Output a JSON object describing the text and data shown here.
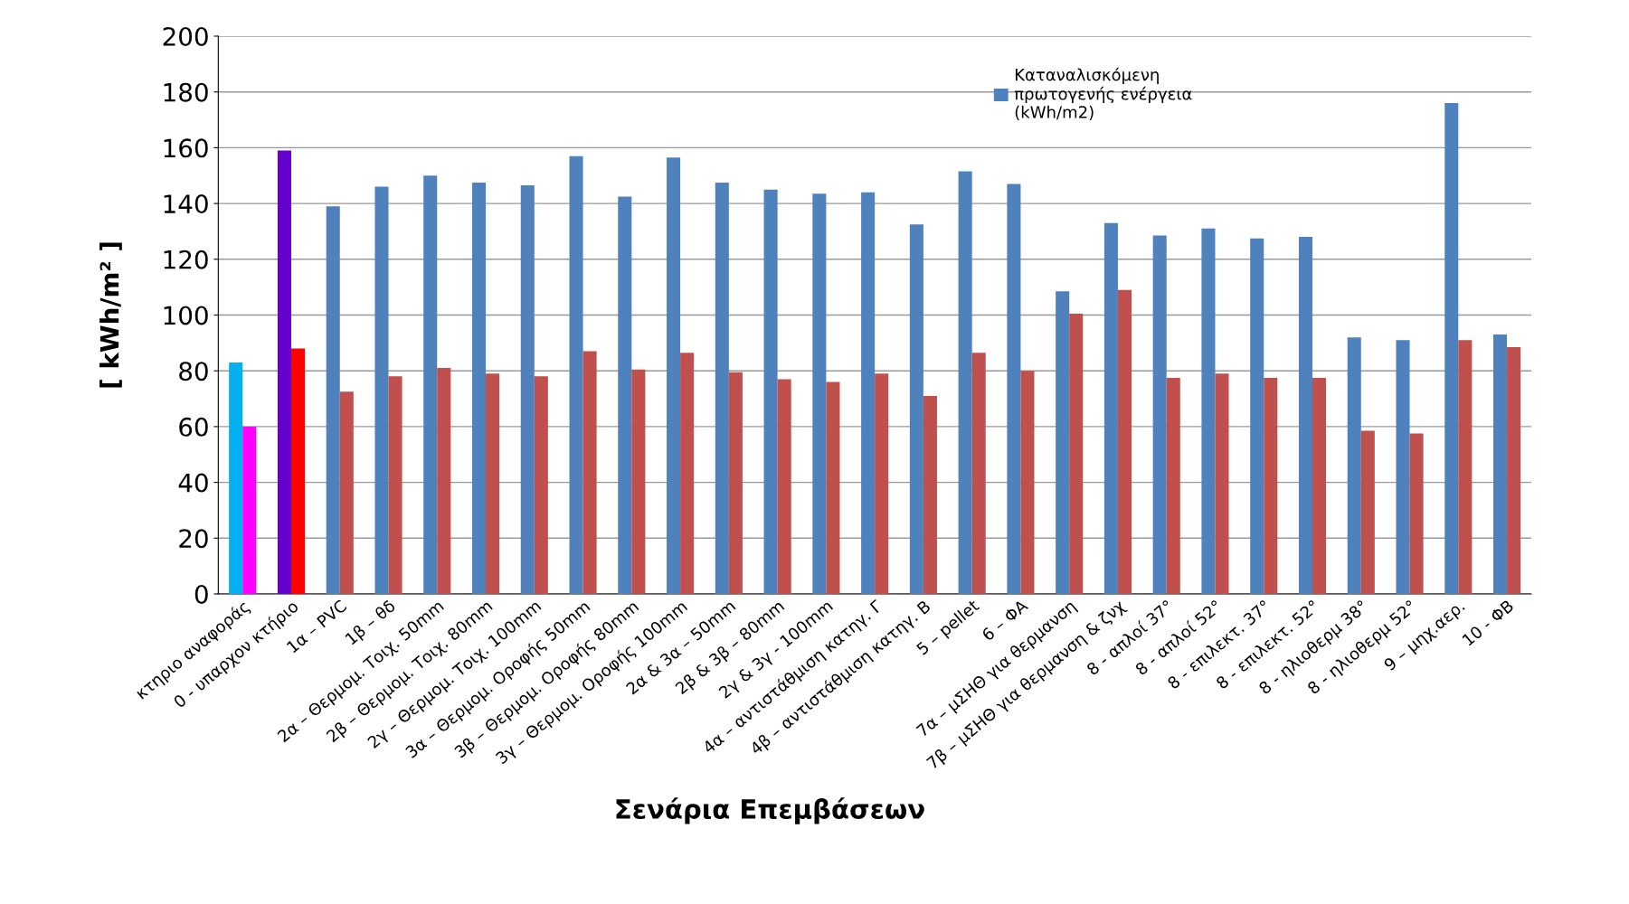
{
  "chart_data": {
    "type": "bar",
    "xlabel": "Σενάρια Επεμβάσεων",
    "ylabel": "[ kWh/m² ]",
    "categories": [
      "κτηριο αναφοράς",
      "0 - υπαρχον κτήριο",
      "1α – PVC",
      "1β – θδ",
      "2α – Θερμομ. Τοιχ. 50mm",
      "2β – Θερμομ. Τοιχ. 80mm",
      "2γ – Θερμομ. Τοιχ. 100mm",
      "3α – Θερμομ. Οροφής 50mm",
      "3β – Θερμομ. Οροφής 80mm",
      "3γ – Θερμομ. Οροφής 100mm",
      "2α & 3α – 50mm",
      "2β & 3β – 80mm",
      "2γ & 3γ - 100mm",
      "4α – αντιστάθμιση κατηγ. Γ",
      "4β – αντιστάθμιση κατηγ. Β",
      "5 – pellet",
      "6 – ΦΑ",
      "7α – μΣΗΘ για θερμανση",
      "7β – μΣΗΘ για θερμανση & ζνχ",
      "8 - απλοί 37°",
      "8 - απλοί 52°",
      "8 - επιλεκτ. 37°",
      "8 - επιλεκτ. 52°",
      "8 - ηλιοθερμ 38°",
      "8 - ηλιοθερμ 52°",
      "9 – μηχ.αερ.",
      "10 - ΦΒ"
    ],
    "series": [
      {
        "name": "Καταναλισκόμενη πρωτογενής ενέργεια (kWh/m2)",
        "color": "#4f81bd",
        "colors": [
          "#00b0f0",
          "#6600cc",
          "#4f81bd",
          "#4f81bd",
          "#4f81bd",
          "#4f81bd",
          "#4f81bd",
          "#4f81bd",
          "#4f81bd",
          "#4f81bd",
          "#4f81bd",
          "#4f81bd",
          "#4f81bd",
          "#4f81bd",
          "#4f81bd",
          "#4f81bd",
          "#4f81bd",
          "#4f81bd",
          "#4f81bd",
          "#4f81bd",
          "#4f81bd",
          "#4f81bd",
          "#4f81bd",
          "#4f81bd",
          "#4f81bd",
          "#4f81bd",
          "#4f81bd"
        ],
        "values": [
          83,
          159,
          139,
          146,
          150,
          147.5,
          146.5,
          157,
          142.5,
          156.5,
          147.5,
          145,
          143.5,
          144,
          132.5,
          151.5,
          147,
          108.5,
          133,
          128.5,
          131,
          127.5,
          128,
          92,
          91,
          176,
          93
        ]
      },
      {
        "color": "#c0504d",
        "colors": [
          "#ff00ff",
          "#ff0000",
          "#c0504d",
          "#c0504d",
          "#c0504d",
          "#c0504d",
          "#c0504d",
          "#c0504d",
          "#c0504d",
          "#c0504d",
          "#c0504d",
          "#c0504d",
          "#c0504d",
          "#c0504d",
          "#c0504d",
          "#c0504d",
          "#c0504d",
          "#c0504d",
          "#c0504d",
          "#c0504d",
          "#c0504d",
          "#c0504d",
          "#c0504d",
          "#c0504d",
          "#c0504d",
          "#c0504d",
          "#c0504d"
        ],
        "values": [
          60,
          88,
          72.5,
          78,
          81,
          79,
          78,
          87,
          80.5,
          86.5,
          79.5,
          77,
          76,
          79,
          71,
          86.5,
          80,
          100.5,
          109,
          77.5,
          79,
          77.5,
          77.5,
          58.5,
          57.5,
          91,
          88.5
        ]
      }
    ],
    "ylim": [
      0,
      200
    ],
    "yticks": [
      0,
      20,
      40,
      60,
      80,
      100,
      120,
      140,
      160,
      180,
      200
    ],
    "grid": "y",
    "legend": "top right"
  }
}
